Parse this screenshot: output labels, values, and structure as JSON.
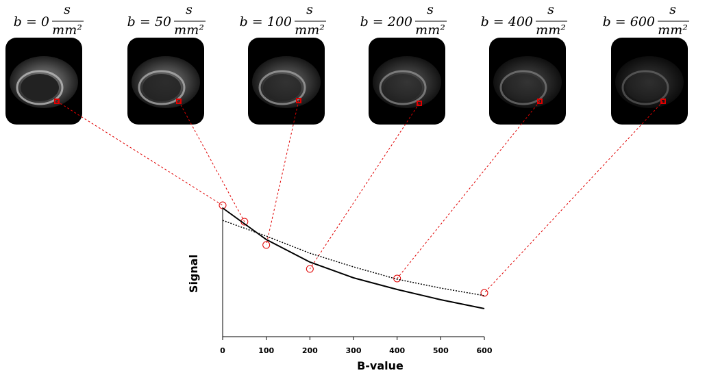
{
  "images": [
    {
      "label": "b = 0"
    },
    {
      "label": "b = 50"
    },
    {
      "label": "b = 100"
    },
    {
      "label": "b = 200"
    },
    {
      "label": "b = 400"
    },
    {
      "label": "b = 600"
    }
  ],
  "unit_numerator": "s",
  "unit_denominator": "mm²",
  "chart_data": {
    "type": "scatter",
    "x_label": "B-value",
    "y_label": "Signal",
    "xlim": [
      0,
      600
    ],
    "xticks": [
      0,
      100,
      200,
      300,
      400,
      500,
      600
    ],
    "ylim": [
      0,
      100
    ],
    "series": [
      {
        "type": "scatter",
        "color": "#e00000",
        "x": [
          0,
          50,
          100,
          200,
          400,
          600
        ],
        "values": [
          96,
          84,
          67,
          49.5,
          42.5,
          32
        ]
      },
      {
        "type": "line",
        "style": "solid",
        "color": "#000000",
        "x": [
          0,
          100,
          200,
          300,
          400,
          500,
          600
        ],
        "values": [
          94,
          71,
          54.5,
          43,
          34.5,
          27,
          20.5
        ]
      },
      {
        "type": "line",
        "style": "dotted",
        "color": "#000000",
        "x": [
          0,
          100,
          200,
          300,
          400,
          500,
          600
        ],
        "values": [
          85,
          73.5,
          61,
          51,
          42,
          35.5,
          30
        ]
      }
    ]
  }
}
